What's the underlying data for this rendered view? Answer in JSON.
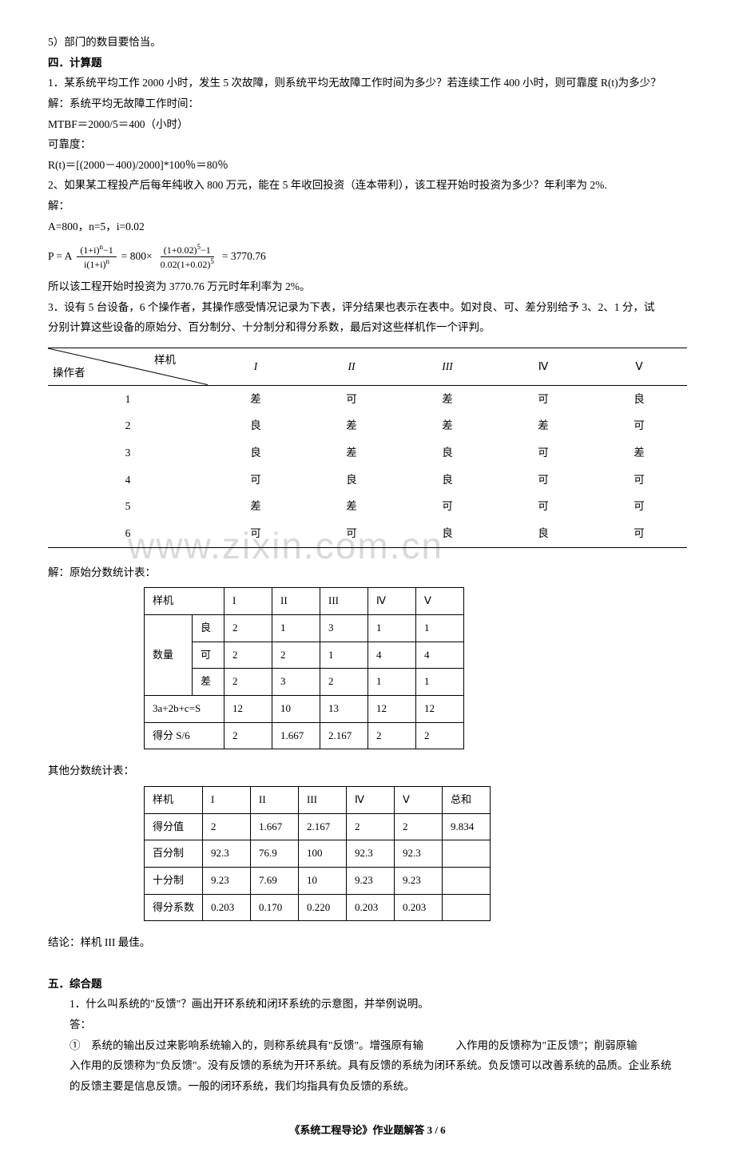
{
  "p1": "5）部门的数目要恰当。",
  "h4": "四．计算题",
  "q1": "1．某系统平均工作 2000 小时，发生 5 次故障，则系统平均无故障工作时间为多少？若连续工作 400 小时，则可靠度 R(t)为多少？",
  "q1a": "解：系统平均无故障工作时间：",
  "q1b": "MTBF＝2000/5＝400（小时）",
  "q1c": "可靠度：",
  "q1d": "R(t)＝[(2000－400)/2000]*100％＝80％",
  "q2": "2、如果某工程投产后每年纯收入 800 万元，能在 5 年收回投资（连本带利），该工程开始时投资为多少？年利率为 2%.",
  "q2a": "解：",
  "q2b": "A=800，n=5，i=0.02",
  "formula": {
    "lead": "P = A",
    "mid": " = 800×",
    "tail": " = 3770.76",
    "n1": "(1+i)",
    "ne1": "n",
    "n1s": "−1",
    "d1a": "i(1+i)",
    "de1": "n",
    "n2": "(1+0.02)",
    "ne2": "5",
    "n2s": "−1",
    "d2a": "0.02(1+0.02)",
    "de2": "5"
  },
  "q2c": "所以该工程开始时投资为 3770.76 万元时年利率为 2%。",
  "q3a": "3．设有 5 台设备，6 个操作者，其操作感受情况记录为下表，评分结果也表示在表中。如对良、可、差分别给予 3、2、1 分，试",
  "q3b": "分别计算这些设备的原始分、百分制分、十分制分和得分系数，最后对这些样机作一个评判。",
  "table1": {
    "diag_top": "样机",
    "diag_bot": "操作者",
    "headers": [
      "I",
      "II",
      "III",
      "Ⅳ",
      "Ⅴ"
    ],
    "rows": [
      {
        "op": "1",
        "v": [
          "差",
          "可",
          "差",
          "可",
          "良"
        ]
      },
      {
        "op": "2",
        "v": [
          "良",
          "差",
          "差",
          "差",
          "可"
        ]
      },
      {
        "op": "3",
        "v": [
          "良",
          "差",
          "良",
          "可",
          "差"
        ]
      },
      {
        "op": "4",
        "v": [
          "可",
          "良",
          "良",
          "可",
          "可"
        ]
      },
      {
        "op": "5",
        "v": [
          "差",
          "差",
          "可",
          "可",
          "可"
        ]
      },
      {
        "op": "6",
        "v": [
          "可",
          "可",
          "良",
          "良",
          "可"
        ]
      }
    ]
  },
  "sol_label": "解：原始分数统计表：",
  "table2": {
    "h": [
      "样机",
      "",
      "I",
      "II",
      "III",
      "Ⅳ",
      "Ⅴ"
    ],
    "rowspan_label": "数量",
    "r": [
      [
        "良",
        "2",
        "1",
        "3",
        "1",
        "1"
      ],
      [
        "可",
        "2",
        "2",
        "1",
        "4",
        "4"
      ],
      [
        "差",
        "2",
        "3",
        "2",
        "1",
        "1"
      ]
    ],
    "sumrow": [
      "3a+2b+c=S",
      "12",
      "10",
      "13",
      "12",
      "12"
    ],
    "avgrow": [
      "得分 S/6",
      "2",
      "1.667",
      "2.167",
      "2",
      "2"
    ]
  },
  "other_label": "其他分数统计表：",
  "table3": {
    "h": [
      "样机",
      "I",
      "II",
      "III",
      "Ⅳ",
      "Ⅴ",
      "总和"
    ],
    "rows": [
      [
        "得分值",
        "2",
        "1.667",
        "2.167",
        "2",
        "2",
        "9.834"
      ],
      [
        "百分制",
        "92.3",
        "76.9",
        "100",
        "92.3",
        "92.3",
        ""
      ],
      [
        "十分制",
        "9.23",
        "7.69",
        "10",
        "9.23",
        "9.23",
        ""
      ],
      [
        "得分系数",
        "0.203",
        "0.170",
        "0.220",
        "0.203",
        "0.203",
        ""
      ]
    ]
  },
  "conclusion": "结论：样机 III 最佳。",
  "h5": "五．综合题",
  "q5_1": "1．什么叫系统的\"反馈\"？画出开环系统和闭环系统的示意图，并举例说明。",
  "ans": "答：",
  "a1": "①　系统的输出反过来影响系统输入的，则称系统具有\"反馈\"。增强原有输　　　入作用的反馈称为\"正反馈\"；削弱原输",
  "a2": "入作用的反馈称为\"负反馈\"。没有反馈的系统为开环系统。具有反馈的系统为闭环系统。负反馈可以改善系统的品质。企业系统",
  "a3": "的反馈主要是信息反馈。一般的闭环系统，我们均指具有负反馈的系统。",
  "footer": "《系统工程导论》作业题解答 3 / 6",
  "watermark": "www.zixin.com.cn"
}
